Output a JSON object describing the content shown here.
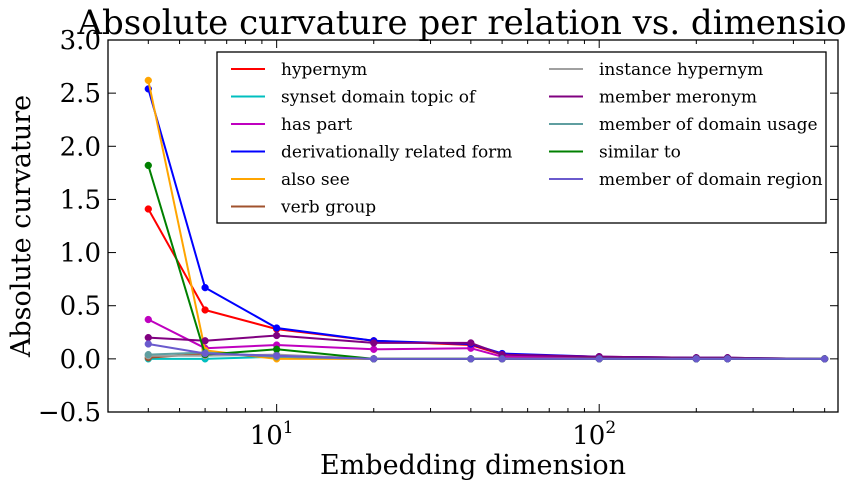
{
  "chart_data": {
    "type": "line",
    "title": "Absolute curvature per relation vs. dimension",
    "xlabel": "Embedding dimension",
    "ylabel": "Absolute curvature",
    "xscale": "log",
    "xlim": [
      3,
      550
    ],
    "ylim": [
      -0.5,
      3.0
    ],
    "xticks": [
      {
        "value": 10,
        "base": "10",
        "exp": "1"
      },
      {
        "value": 100,
        "base": "10",
        "exp": "2"
      }
    ],
    "yticks": [
      {
        "value": 3.0,
        "label": "3.0"
      },
      {
        "value": 2.5,
        "label": "2.5"
      },
      {
        "value": 2.0,
        "label": "2.0"
      },
      {
        "value": 1.5,
        "label": "1.5"
      },
      {
        "value": 1.0,
        "label": "1.0"
      },
      {
        "value": 0.5,
        "label": "0.5"
      },
      {
        "value": 0.0,
        "label": "0.0"
      },
      {
        "value": -0.5,
        "label": "−0.5"
      }
    ],
    "grid": false,
    "legend_position": "top-right",
    "legend_columns": 2,
    "x": [
      4,
      6,
      10,
      20,
      40,
      50,
      100,
      200,
      250,
      500
    ],
    "series": [
      {
        "name": "hypernym",
        "color": "#ff0000",
        "values": [
          1.41,
          0.46,
          0.28,
          0.17,
          0.13,
          0.04,
          0.02,
          0.01,
          0.01,
          0.0
        ]
      },
      {
        "name": "synset domain topic of",
        "color": "#00bfbf",
        "values": [
          0.0,
          0.0,
          0.02,
          0.0,
          0.0,
          0.0,
          0.0,
          0.0,
          0.0,
          0.0
        ]
      },
      {
        "name": "has part",
        "color": "#bf00bf",
        "values": [
          0.37,
          0.1,
          0.13,
          0.09,
          0.1,
          0.02,
          0.01,
          0.0,
          0.0,
          0.0
        ]
      },
      {
        "name": "derivationally related form",
        "color": "#0000ff",
        "values": [
          2.54,
          0.67,
          0.29,
          0.17,
          0.14,
          0.05,
          0.02,
          0.01,
          0.01,
          0.0
        ]
      },
      {
        "name": "also see",
        "color": "#ffa500",
        "values": [
          2.62,
          0.08,
          0.0,
          0.0,
          0.0,
          0.0,
          0.0,
          0.0,
          0.0,
          0.0
        ]
      },
      {
        "name": "verb group",
        "color": "#a0522d",
        "values": [
          0.01,
          0.05,
          0.02,
          0.0,
          0.0,
          0.0,
          0.0,
          0.0,
          0.0,
          0.0
        ]
      },
      {
        "name": "instance hypernym",
        "color": "#a0a0a0",
        "values": [
          0.03,
          0.03,
          0.04,
          0.0,
          0.0,
          0.0,
          0.0,
          0.0,
          0.0,
          0.0
        ]
      },
      {
        "name": "member meronym",
        "color": "#800080",
        "values": [
          0.2,
          0.17,
          0.22,
          0.15,
          0.15,
          0.04,
          0.02,
          0.01,
          0.01,
          0.0
        ]
      },
      {
        "name": "member of domain usage",
        "color": "#5f9ea0",
        "values": [
          0.04,
          0.06,
          0.02,
          0.0,
          0.0,
          0.0,
          0.0,
          0.0,
          0.0,
          0.0
        ]
      },
      {
        "name": "similar to",
        "color": "#008000",
        "values": [
          1.82,
          0.04,
          0.09,
          0.0,
          0.0,
          0.0,
          0.0,
          0.0,
          0.0,
          0.0
        ]
      },
      {
        "name": "member of domain region",
        "color": "#6a5acd",
        "values": [
          0.14,
          0.05,
          0.03,
          0.0,
          0.0,
          0.0,
          0.0,
          0.0,
          0.0,
          0.0
        ]
      }
    ]
  }
}
